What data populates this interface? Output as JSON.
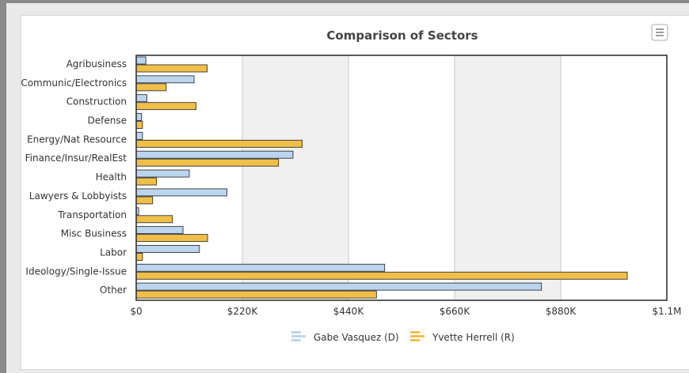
{
  "chart_data": {
    "type": "bar",
    "orientation": "horizontal",
    "title": "Comparison of Sectors",
    "categories": [
      "Agribusiness",
      "Communic/Electronics",
      "Construction",
      "Defense",
      "Energy/Nat Resource",
      "Finance/Insur/RealEst",
      "Health",
      "Lawyers & Lobbyists",
      "Transportation",
      "Misc Business",
      "Labor",
      "Ideology/Single-Issue",
      "Other"
    ],
    "series": [
      {
        "name": "Gabe Vasquez (D)",
        "color": "#bcd5ee",
        "values": [
          20000,
          120000,
          22000,
          11000,
          13000,
          325000,
          110000,
          188000,
          5000,
          97000,
          131000,
          515000,
          840000
        ]
      },
      {
        "name": "Yvette Herrell (R)",
        "color": "#f0bf49",
        "values": [
          147000,
          62000,
          124000,
          13000,
          344000,
          295000,
          42000,
          34000,
          75000,
          148000,
          13000,
          1018000,
          498000
        ]
      }
    ],
    "xlim": [
      0,
      1100000
    ],
    "xticks": [
      "$0",
      "$220K",
      "$440K",
      "$660K",
      "$880K",
      "$1.1M"
    ],
    "grid": true,
    "legend_position": "bottom-center"
  },
  "ui": {
    "menu_icon": "hamburger-menu-icon"
  }
}
